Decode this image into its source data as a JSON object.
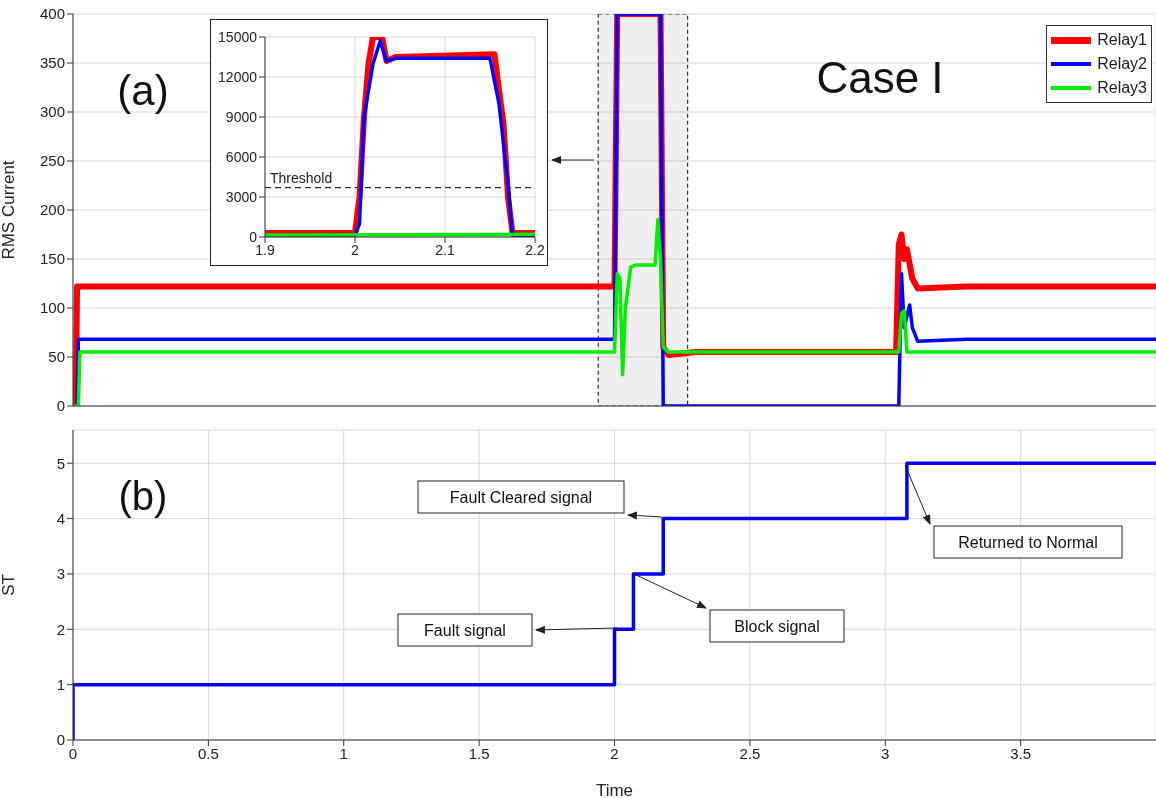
{
  "chart_data": [
    {
      "type": "line",
      "ylabel": "RMS Current",
      "xlim": [
        0,
        4
      ],
      "xticks": [
        0,
        0.5,
        1,
        1.5,
        2,
        2.5,
        3,
        3.5
      ],
      "ylim": [
        0,
        400
      ],
      "yticks": [
        0,
        50,
        100,
        150,
        200,
        250,
        300,
        350,
        400
      ],
      "grid": true,
      "legend": "top right",
      "tick_labels": "y",
      "annotations": [
        "(a)",
        "Case I"
      ],
      "bands": [
        {
          "axis": "x",
          "from": 1.94,
          "to": 2.27,
          "color": "#333333"
        }
      ],
      "series": [
        {
          "name": "Relay1",
          "color": "#ff0000",
          "x": [
            0,
            0.01,
            0.015,
            2.0,
            2.01,
            2.17,
            2.18,
            2.2,
            2.3,
            3.04,
            3.05,
            3.06,
            3.07,
            3.08,
            3.1,
            3.12,
            3.3,
            4.0
          ],
          "values": [
            0,
            0,
            122,
            122,
            400,
            400,
            60,
            52,
            55,
            55,
            165,
            175,
            150,
            160,
            130,
            120,
            122,
            122
          ]
        },
        {
          "name": "Relay2",
          "color": "#0000ff",
          "x": [
            0,
            0.015,
            0.02,
            2.0,
            2.01,
            2.17,
            2.18,
            3.05,
            3.06,
            3.07,
            3.09,
            3.1,
            3.12,
            3.3,
            4.0
          ],
          "values": [
            0,
            0,
            68,
            68,
            400,
            400,
            0,
            0,
            135,
            80,
            103,
            80,
            66,
            68,
            68
          ]
        },
        {
          "name": "Relay3",
          "color": "#00ee00",
          "x": [
            0,
            0.02,
            0.025,
            2.0,
            2.01,
            2.02,
            2.03,
            2.04,
            2.06,
            2.08,
            2.15,
            2.16,
            2.17,
            2.18,
            2.2,
            3.05,
            3.06,
            3.07,
            3.08,
            4.0
          ],
          "values": [
            0,
            0,
            55,
            55,
            135,
            130,
            32,
            100,
            142,
            144,
            144,
            190,
            150,
            60,
            55,
            55,
            95,
            97,
            55,
            55
          ]
        }
      ]
    },
    {
      "type": "line",
      "xlim": [
        1.9,
        2.2
      ],
      "xticks": [
        1.9,
        2,
        2.1,
        2.2
      ],
      "ylim": [
        0,
        15000
      ],
      "yticks": [
        0,
        3000,
        6000,
        9000,
        12000,
        15000
      ],
      "grid": true,
      "ref_lines": [
        {
          "axis": "y",
          "value": 3700,
          "label": "Threshold",
          "color": "#000000",
          "line_style": "dashed"
        }
      ],
      "series": [
        {
          "color": "#ff0000",
          "x": [
            1.9,
            2.0,
            2.005,
            2.01,
            2.015,
            2.02,
            2.03,
            2.035,
            2.045,
            2.155,
            2.16,
            2.165,
            2.17,
            2.175,
            2.2
          ],
          "values": [
            300,
            300,
            3000,
            9000,
            13000,
            15000,
            15000,
            13200,
            13500,
            13700,
            11000,
            8500,
            3000,
            300,
            300
          ]
        },
        {
          "color": "#0000ff",
          "x": [
            1.9,
            2.0,
            2.005,
            2.01,
            2.02,
            2.028,
            2.035,
            2.045,
            2.15,
            2.16,
            2.17,
            2.175,
            2.2
          ],
          "values": [
            100,
            100,
            1000,
            9000,
            13000,
            14700,
            13200,
            13400,
            13400,
            10000,
            4000,
            100,
            100
          ]
        },
        {
          "color": "#00ee00",
          "x": [
            1.9,
            2.2
          ],
          "values": [
            150,
            200
          ]
        }
      ]
    },
    {
      "type": "step",
      "xlabel": "Time",
      "ylabel": "ST",
      "xlim": [
        0,
        4
      ],
      "xticks": [
        0,
        0.5,
        1,
        1.5,
        2,
        2.5,
        3,
        3.5
      ],
      "ylim": [
        0,
        5.6
      ],
      "yticks": [
        0,
        1,
        2,
        3,
        4,
        5
      ],
      "grid": true,
      "annotations": [
        "(b)",
        "Fault signal",
        "Block signal",
        "Fault Cleared signal",
        "Returned to Normal"
      ],
      "series": [
        {
          "color": "#0000ff",
          "x": [
            0,
            0,
            2.0,
            2.07,
            2.18,
            3.08,
            4.0
          ],
          "values": [
            0,
            1,
            2,
            3,
            4,
            5,
            5
          ]
        }
      ]
    }
  ]
}
